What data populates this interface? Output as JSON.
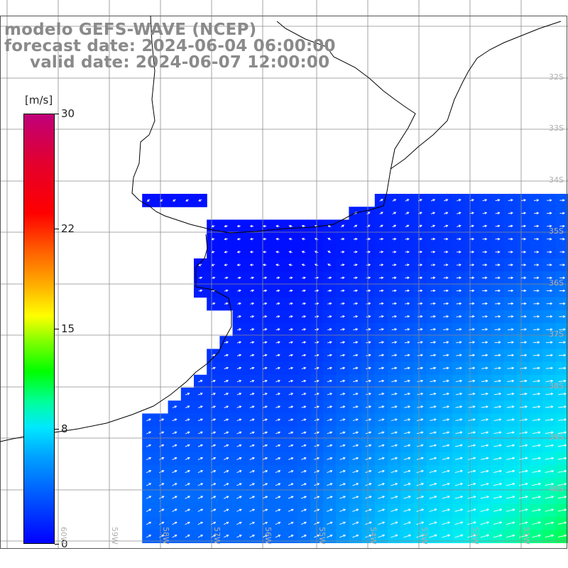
{
  "title": {
    "line1": "modelo GEFS-WAVE (NCEP)",
    "line2": "forecast date: 2024-06-04 06:00:00",
    "line3": "valid date: 2024-06-07 12:00:00"
  },
  "colorbar": {
    "unit": "[m/s]",
    "min": 0,
    "max": 30,
    "tick_labels": [
      "30",
      "22",
      "15",
      "8",
      "0"
    ],
    "tick_values": [
      30,
      22,
      15,
      8,
      0
    ]
  },
  "axes": {
    "lat_labels": [
      "32S",
      "33S",
      "34S",
      "35S",
      "36S",
      "37S",
      "38S",
      "39S",
      "40S"
    ],
    "lon_labels": [
      "60W",
      "59W",
      "58W",
      "57W",
      "56W",
      "55W",
      "54W",
      "53W",
      "52W",
      "51W"
    ]
  },
  "colors": {
    "land": "#ffffff",
    "grid": "#8c8c8c",
    "coast": "#000000",
    "arrows": "#ffffff",
    "low_speed": "#0000ff",
    "high_speed": "#00ff40"
  }
}
